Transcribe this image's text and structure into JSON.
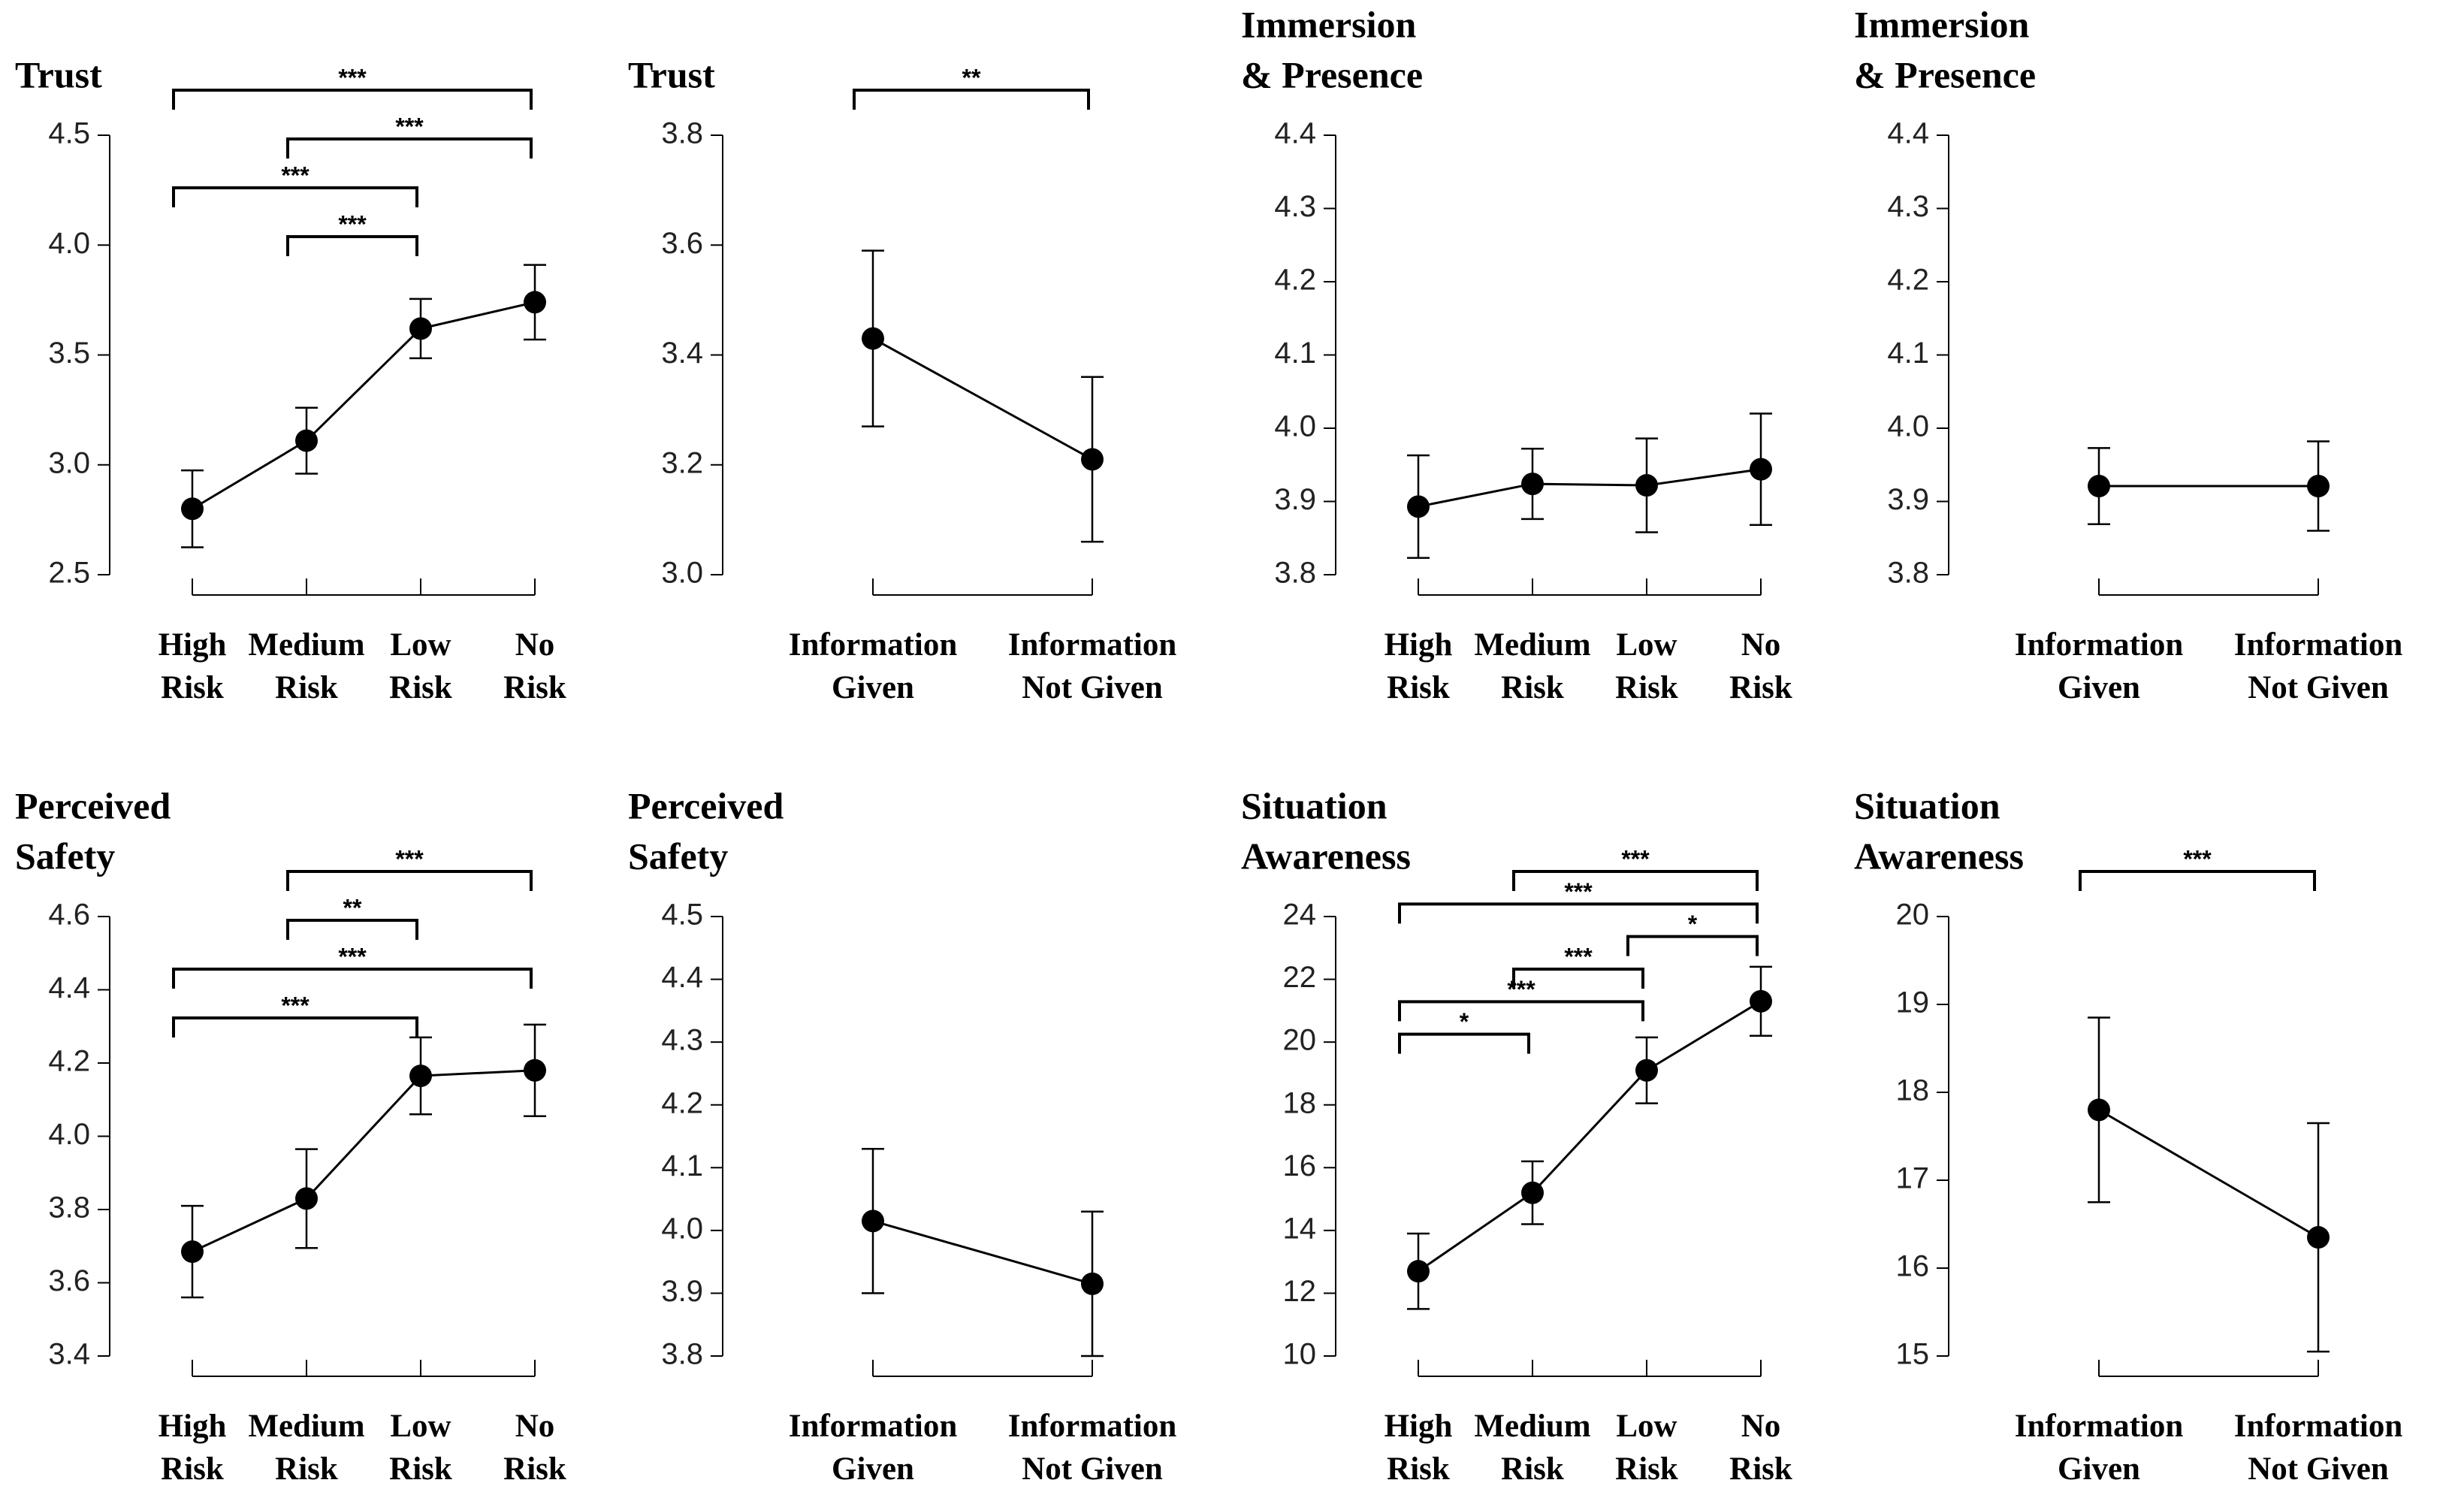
{
  "chart_data": [
    {
      "type": "line",
      "title": [
        "Trust"
      ],
      "color": "#000000",
      "categories": [
        [
          "High",
          "Risk"
        ],
        [
          "Medium",
          "Risk"
        ],
        [
          "Low",
          "Risk"
        ],
        [
          "No",
          "Risk"
        ]
      ],
      "values": [
        2.8,
        3.11,
        3.62,
        3.74
      ],
      "errors": [
        0.175,
        0.15,
        0.135,
        0.17
      ],
      "ylim": [
        2.5,
        4.5
      ],
      "yticks": [
        2.5,
        {
          "value": 3,
          "label": "3.0"
        },
        3.5,
        {
          "value": 4,
          "label": "4.0"
        },
        4.5
      ],
      "annotations": [
        {
          "from": 0,
          "to": 3,
          "label": "***"
        },
        {
          "from": 1,
          "to": 3,
          "label": "***"
        },
        {
          "from": 0,
          "to": 2,
          "label": "***"
        },
        {
          "from": 1,
          "to": 2,
          "label": "***"
        }
      ]
    },
    {
      "type": "line",
      "title": [
        "Trust"
      ],
      "color": "#000000",
      "categories": [
        [
          "Information",
          "Given"
        ],
        [
          "Information",
          "Not Given"
        ]
      ],
      "values": [
        3.43,
        3.21
      ],
      "errors": [
        0.16,
        0.15
      ],
      "ylim": [
        3.0,
        3.8
      ],
      "yticks": [
        {
          "value": 3,
          "label": "3.0"
        },
        3.2,
        3.4,
        3.6,
        3.8
      ],
      "annotations": [
        {
          "from": 0,
          "to": 1,
          "label": "**"
        }
      ]
    },
    {
      "type": "line",
      "title": [
        "Immersion",
        "& Presence"
      ],
      "color": "#000000",
      "categories": [
        [
          "High",
          "Risk"
        ],
        [
          "Medium",
          "Risk"
        ],
        [
          "Low",
          "Risk"
        ],
        [
          "No",
          "Risk"
        ]
      ],
      "values": [
        3.893,
        3.924,
        3.922,
        3.944
      ],
      "errors": [
        0.07,
        0.048,
        0.064,
        0.076
      ],
      "ylim": [
        3.8,
        4.4
      ],
      "yticks": [
        3.8,
        3.9,
        {
          "value": 4,
          "label": "4.0"
        },
        4.1,
        4.2,
        4.3,
        4.4
      ],
      "annotations": []
    },
    {
      "type": "line",
      "title": [
        "Immersion",
        "& Presence"
      ],
      "color": "#000000",
      "categories": [
        [
          "Information",
          "Given"
        ],
        [
          "Information",
          "Not Given"
        ]
      ],
      "values": [
        3.921,
        3.921
      ],
      "errors": [
        0.052,
        0.061
      ],
      "ylim": [
        3.8,
        4.4
      ],
      "yticks": [
        3.8,
        3.9,
        {
          "value": 4,
          "label": "4.0"
        },
        4.1,
        4.2,
        4.3,
        4.4
      ],
      "annotations": []
    },
    {
      "type": "line",
      "title": [
        "Perceived",
        "Safety"
      ],
      "color": "#000000",
      "categories": [
        [
          "High",
          "Risk"
        ],
        [
          "Medium",
          "Risk"
        ],
        [
          "Low",
          "Risk"
        ],
        [
          "No",
          "Risk"
        ]
      ],
      "values": [
        3.685,
        3.83,
        4.165,
        4.18
      ],
      "errors": [
        0.125,
        0.135,
        0.105,
        0.125
      ],
      "ylim": [
        3.4,
        4.6
      ],
      "yticks": [
        3.4,
        3.6,
        3.8,
        {
          "value": 4,
          "label": "4.0"
        },
        4.2,
        4.4,
        4.6
      ],
      "annotations": [
        {
          "from": 1,
          "to": 3,
          "label": "***"
        },
        {
          "from": 1,
          "to": 2,
          "label": "**"
        },
        {
          "from": 0,
          "to": 3,
          "label": "***"
        },
        {
          "from": 0,
          "to": 2,
          "label": "***"
        }
      ]
    },
    {
      "type": "line",
      "title": [
        "Perceived",
        "Safety"
      ],
      "color": "#000000",
      "categories": [
        [
          "Information",
          "Given"
        ],
        [
          "Information",
          "Not Given"
        ]
      ],
      "values": [
        4.015,
        3.915
      ],
      "errors": [
        0.115,
        0.115
      ],
      "ylim": [
        3.8,
        4.5
      ],
      "yticks": [
        3.8,
        3.9,
        {
          "value": 4,
          "label": "4.0"
        },
        4.1,
        4.2,
        4.3,
        4.4,
        4.5
      ],
      "annotations": []
    },
    {
      "type": "line",
      "title": [
        "Situation",
        "Awareness"
      ],
      "color": "#000000",
      "categories": [
        [
          "High",
          "Risk"
        ],
        [
          "Medium",
          "Risk"
        ],
        [
          "Low",
          "Risk"
        ],
        [
          "No",
          "Risk"
        ]
      ],
      "values": [
        12.7,
        15.2,
        19.1,
        21.3
      ],
      "errors": [
        1.2,
        1.0,
        1.05,
        1.1
      ],
      "ylim": [
        10,
        24
      ],
      "yticks": [
        10,
        12,
        14,
        16,
        18,
        20,
        22,
        24
      ],
      "annotations": [
        {
          "from": 1,
          "to": 3,
          "label": "***"
        },
        {
          "from": 0,
          "to": 3,
          "label": "***"
        },
        {
          "from": 2,
          "to": 3,
          "label": "*"
        },
        {
          "from": 1,
          "to": 2,
          "label": "***"
        },
        {
          "from": 0,
          "to": 2,
          "label": "***"
        },
        {
          "from": 0,
          "to": 1,
          "label": "*"
        }
      ]
    },
    {
      "type": "line",
      "title": [
        "Situation",
        "Awareness"
      ],
      "color": "#000000",
      "categories": [
        [
          "Information",
          "Given"
        ],
        [
          "Information",
          "Not Given"
        ]
      ],
      "values": [
        17.8,
        16.35
      ],
      "errors": [
        1.05,
        1.3
      ],
      "ylim": [
        15,
        20
      ],
      "yticks": [
        15,
        16,
        17,
        18,
        19,
        20
      ],
      "annotations": [
        {
          "from": 0,
          "to": 1,
          "label": "***"
        }
      ]
    }
  ]
}
